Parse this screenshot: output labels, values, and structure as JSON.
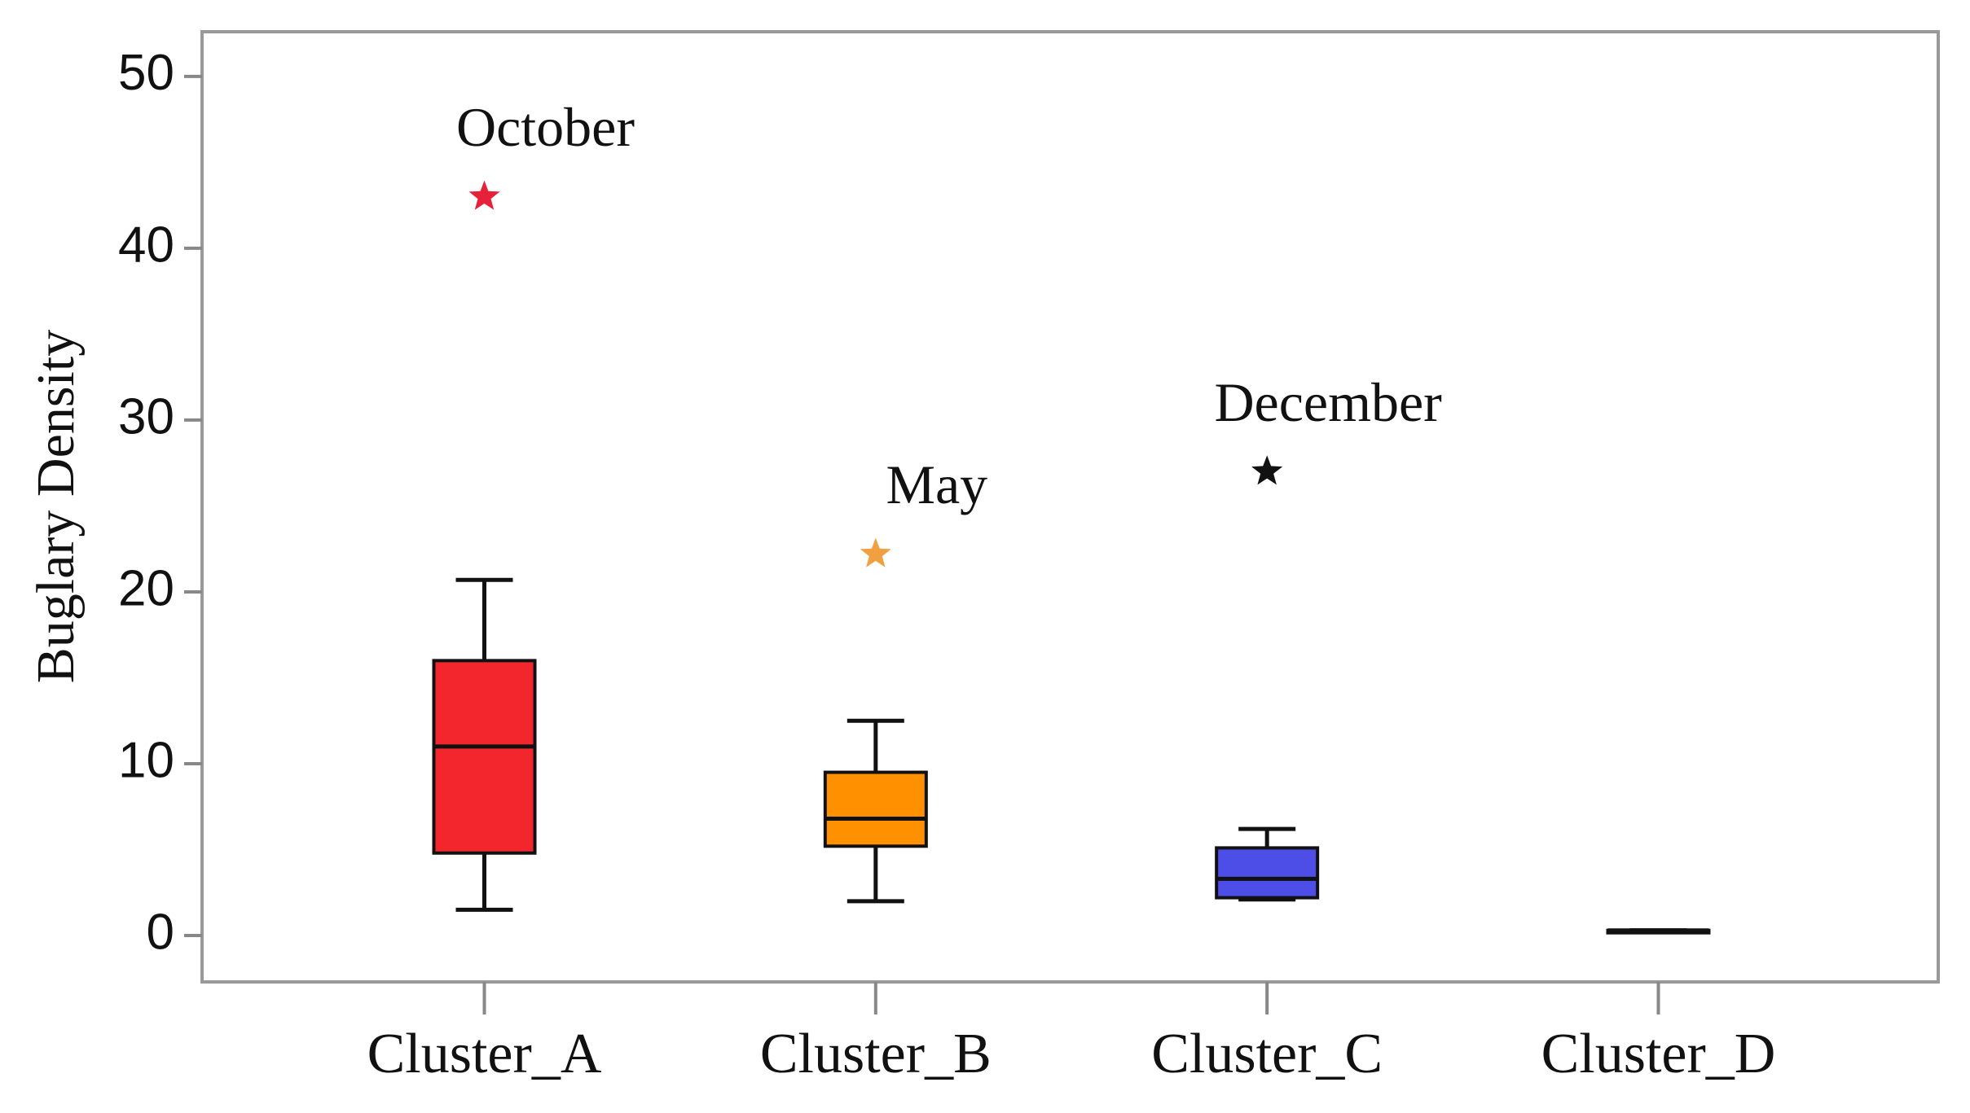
{
  "chart_data": {
    "type": "box",
    "y_label": "Buglary Density",
    "categories": [
      "Cluster_A",
      "Cluster_B",
      "Cluster_C",
      "Cluster_D"
    ],
    "boxes": [
      {
        "min": 1.5,
        "q1": 4.8,
        "median": 11,
        "q3": 16,
        "max": 20.7,
        "color": "#f2262c",
        "outlier": {
          "value": 43,
          "label": "October",
          "color": "#e8213a"
        }
      },
      {
        "min": 2,
        "q1": 5.2,
        "median": 6.8,
        "q3": 9.5,
        "max": 12.5,
        "color": "#ff9000",
        "outlier": {
          "value": 22.2,
          "label": "May",
          "color": "#f0a040"
        }
      },
      {
        "min": 2.1,
        "q1": 2.2,
        "median": 3.3,
        "q3": 5.1,
        "max": 6.2,
        "color": "#4d4de8",
        "outlier": {
          "value": 27,
          "label": "December",
          "color": "#111111"
        }
      },
      {
        "min": 0.3,
        "q1": 0.3,
        "median": 0.3,
        "q3": 0.3,
        "max": 0.3,
        "color": "#222222"
      }
    ],
    "ylim": [
      -2.7,
      52.6
    ],
    "yticks": [
      0,
      10,
      20,
      30,
      40,
      50
    ]
  }
}
